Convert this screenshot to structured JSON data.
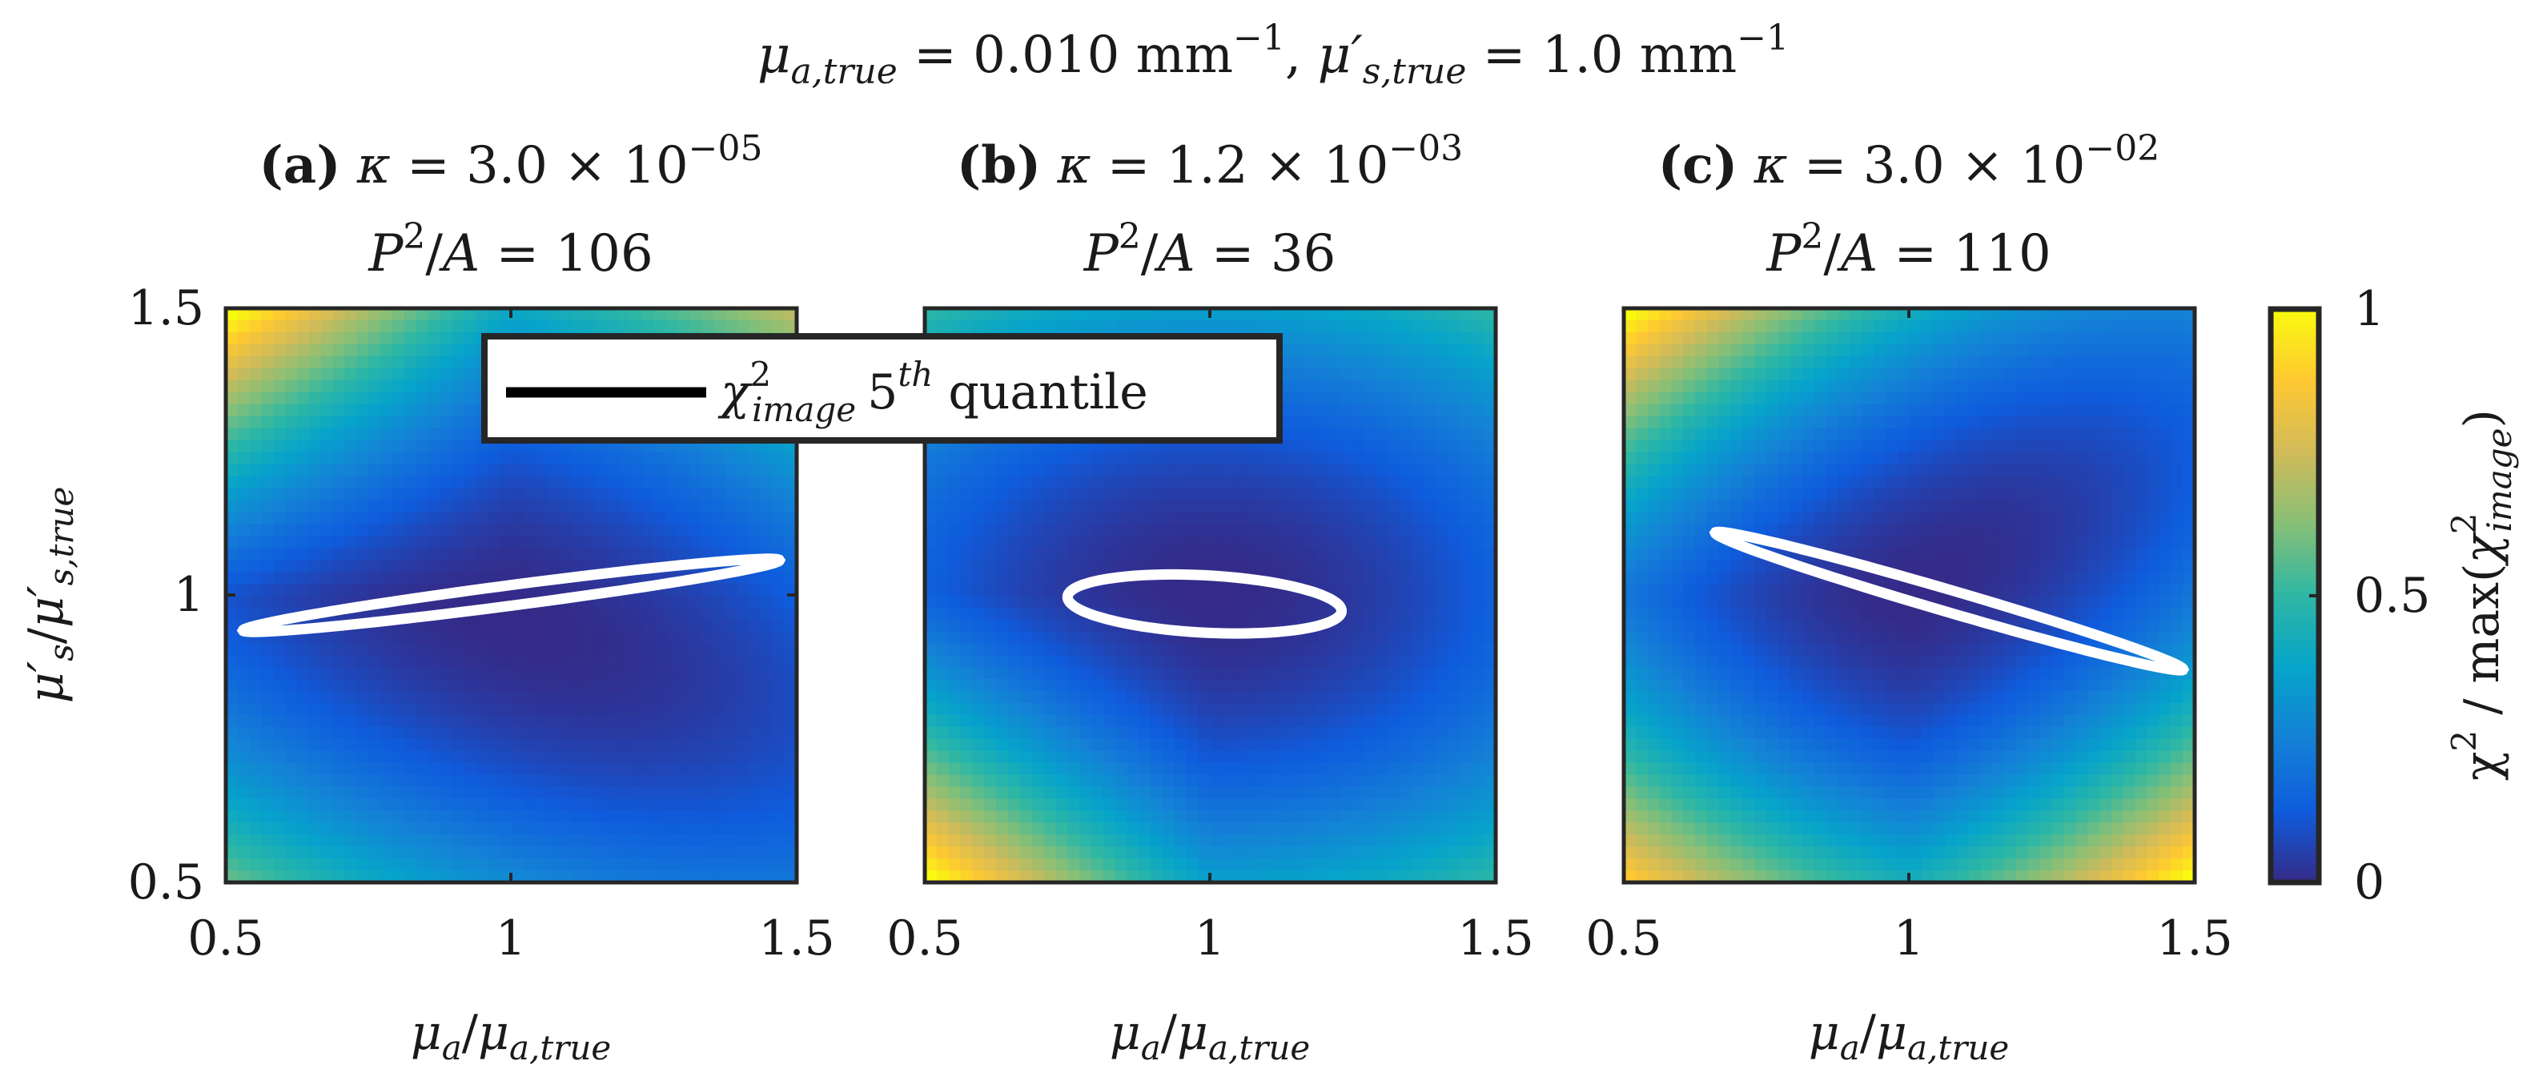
{
  "chart_data": {
    "type": "heatmap",
    "suptitle": "μa,true = 0.010 mm−1, μ′s,true = 1.0 mm−1",
    "suptitle_parts": {
      "mu_a": "μ",
      "mu_a_sub": "a,true",
      "eq1": " = 0.010 mm",
      "exp1": "−1",
      "sep": ", ",
      "mu_s": "μ′",
      "mu_s_sub": "s,true",
      "eq2": " = 1.0 mm",
      "exp2": "−1"
    },
    "xlabel": {
      "num": "μ",
      "num_sub": "a",
      "slash": "/",
      "den": "μ",
      "den_sub": "a,true"
    },
    "ylabel": {
      "num": "μ′",
      "num_sub": "s",
      "slash": "/",
      "den": "μ′",
      "den_sub": "s,true"
    },
    "x_ticks": [
      "0.5",
      "1",
      "1.5"
    ],
    "y_ticks": [
      "0.5",
      "1",
      "1.5"
    ],
    "xlim": [
      0.5,
      1.5
    ],
    "ylim": [
      0.5,
      1.5
    ],
    "panels": [
      {
        "label": "(a)",
        "kappa_mantissa": "3.0",
        "kappa_exp": "−05",
        "pa_value": "106",
        "surface": {
          "min_point": [
            1.0,
            0.96
          ],
          "max_corner": "top-left",
          "x_weight": 0.25,
          "y_coupling": 0.3
        },
        "contour": {
          "center": [
            1.0,
            1.0
          ],
          "half_width": 0.47,
          "half_height": 0.018,
          "slope": 0.13
        }
      },
      {
        "label": "(b)",
        "kappa_mantissa": "1.2",
        "kappa_exp": "−03",
        "pa_value": "36",
        "surface": {
          "min_point": [
            1.0,
            1.0
          ],
          "max_corner": "bottom-left",
          "x_weight": 0.4,
          "y_coupling": 0.0
        },
        "contour": {
          "center": [
            0.99,
            0.985
          ],
          "half_width": 0.24,
          "half_height": 0.05,
          "slope": -0.05
        }
      },
      {
        "label": "(c)",
        "kappa_mantissa": "3.0",
        "kappa_exp": "−02",
        "pa_value": "110",
        "surface": {
          "min_point": [
            1.0,
            1.0
          ],
          "max_corner": "bottom-left",
          "x_weight": 0.3,
          "y_coupling": -0.45
        },
        "contour": {
          "center": [
            1.07,
            0.99
          ],
          "half_width": 0.41,
          "half_height": 0.02,
          "slope": -0.29
        }
      }
    ],
    "legend": {
      "label_chi": "χ",
      "label_sup": "2",
      "label_sub": "image",
      "label_nth": "5",
      "label_th": "th",
      "label_rest": " quantile",
      "position": "top-left"
    },
    "colorbar": {
      "ticks": [
        "0",
        "0.5",
        "1"
      ],
      "range": [
        0,
        1
      ],
      "colormap": "parula",
      "label": {
        "chi": "χ",
        "sup": "2",
        "mid": " / max(",
        "chi2": "χ",
        "sup2": "2",
        "sub2": "image",
        "close": ")"
      }
    },
    "colors": {
      "contour": "#ffffff",
      "axis": "#262626",
      "background": "#ffffff"
    }
  }
}
